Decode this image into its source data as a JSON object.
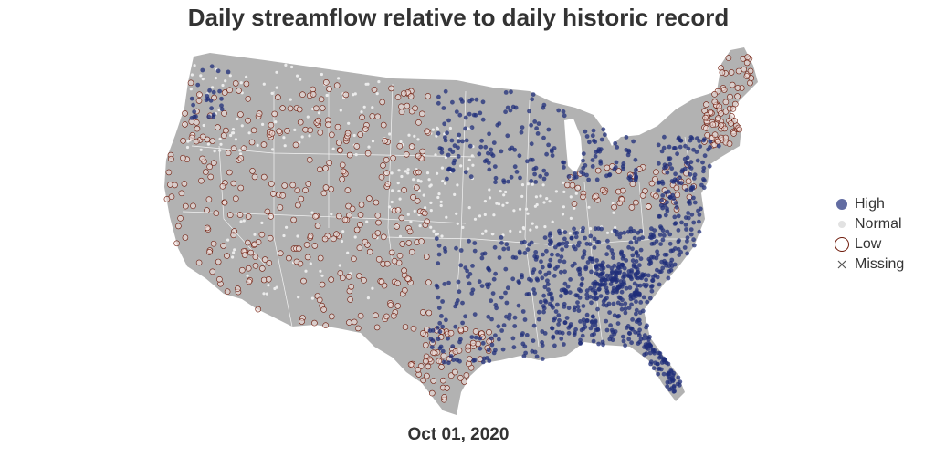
{
  "title": "Daily streamflow relative to daily historic record",
  "date_label": "Oct 01, 2020",
  "colors": {
    "land": "#b2b2b2",
    "state_borders": "#ffffff",
    "high": "#1f2e7a",
    "normal": "#ececec",
    "low_outline": "#6e1a0a",
    "low_fill": "#f2e0dc",
    "missing": "#555555"
  },
  "legend": {
    "items": [
      {
        "label": "High",
        "icon": "filled-circle"
      },
      {
        "label": "Normal",
        "icon": "light-circle"
      },
      {
        "label": "Low",
        "icon": "open-circle"
      },
      {
        "label": "Missing",
        "icon": "x-mark"
      }
    ]
  },
  "chart_data": {
    "type": "scatter",
    "title": "Daily streamflow relative to daily historic record",
    "subtitle": "Oct 01, 2020",
    "categories": [
      "High",
      "Normal",
      "Low",
      "Missing"
    ],
    "projection": "Albers equal-area conic (contiguous United States)",
    "legend_position": "right",
    "pattern": "High concentrated in the southeast, mid-Atlantic and upper Midwest; Low widespread across the west, Texas and New England; Normal scattered across the Great Plains"
  }
}
